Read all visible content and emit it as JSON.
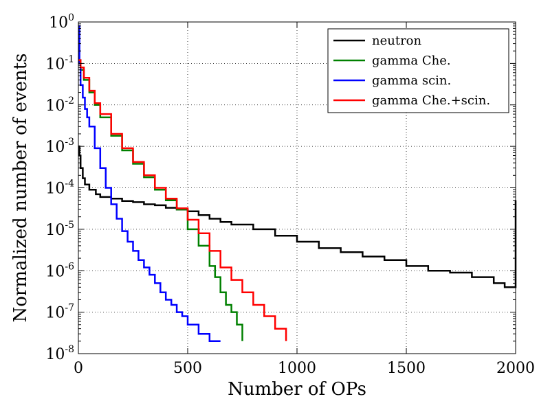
{
  "chart_data": {
    "type": "line",
    "xlabel": "Number of OPs",
    "ylabel": "Normalized number of events",
    "xlim": [
      0,
      2000
    ],
    "ylim": [
      1e-08,
      1
    ],
    "yscale": "log",
    "grid": true,
    "legend_position": "top-right",
    "x_ticks": [
      {
        "value": 0,
        "label": "0"
      },
      {
        "value": 500,
        "label": "500"
      },
      {
        "value": 1000,
        "label": "1000"
      },
      {
        "value": 1500,
        "label": "1500"
      },
      {
        "value": 2000,
        "label": "2000"
      }
    ],
    "y_ticks": [
      {
        "value": 1,
        "base": "10",
        "exp": "0"
      },
      {
        "value": 0.1,
        "base": "10",
        "exp": "-1"
      },
      {
        "value": 0.01,
        "base": "10",
        "exp": "-2"
      },
      {
        "value": 0.001,
        "base": "10",
        "exp": "-3"
      },
      {
        "value": 0.0001,
        "base": "10",
        "exp": "-4"
      },
      {
        "value": 1e-05,
        "base": "10",
        "exp": "-5"
      },
      {
        "value": 1e-06,
        "base": "10",
        "exp": "-6"
      },
      {
        "value": 1e-07,
        "base": "10",
        "exp": "-7"
      },
      {
        "value": 1e-08,
        "base": "10",
        "exp": "-8"
      }
    ],
    "series": [
      {
        "name": "neutron",
        "color": "#000000",
        "x": [
          0,
          5,
          10,
          20,
          30,
          50,
          80,
          100,
          150,
          200,
          250,
          300,
          350,
          400,
          450,
          500,
          550,
          600,
          650,
          700,
          800,
          900,
          1000,
          1100,
          1200,
          1300,
          1400,
          1500,
          1600,
          1700,
          1800,
          1900,
          1950,
          2000
        ],
        "y": [
          0.001,
          0.0006,
          0.0003,
          0.00017,
          0.00012,
          9e-05,
          7e-05,
          6e-05,
          5.5e-05,
          4.8e-05,
          4.5e-05,
          4e-05,
          3.8e-05,
          3.3e-05,
          3e-05,
          2.7e-05,
          2.2e-05,
          1.8e-05,
          1.5e-05,
          1.3e-05,
          1e-05,
          7e-06,
          5e-06,
          3.5e-06,
          2.8e-06,
          2.2e-06,
          1.8e-06,
          1.3e-06,
          1e-06,
          9e-07,
          7e-07,
          5e-07,
          4e-07,
          5e-05
        ]
      },
      {
        "name": "gamma Che.",
        "color": "#008000",
        "x": [
          0,
          10,
          25,
          50,
          75,
          100,
          150,
          200,
          250,
          300,
          350,
          400,
          450,
          500,
          550,
          600,
          625,
          650,
          675,
          700,
          725,
          750
        ],
        "y": [
          0.12,
          0.07,
          0.04,
          0.02,
          0.01,
          0.005,
          0.0018,
          0.0008,
          0.00038,
          0.00018,
          9e-05,
          5e-05,
          3e-05,
          1e-05,
          4e-06,
          1.3e-06,
          7e-07,
          3e-07,
          1.5e-07,
          1e-07,
          5e-08,
          2e-08
        ]
      },
      {
        "name": "gamma scin.",
        "color": "#0000ff",
        "x": [
          0,
          5,
          10,
          20,
          30,
          40,
          50,
          75,
          100,
          125,
          150,
          175,
          200,
          225,
          250,
          275,
          300,
          325,
          350,
          375,
          400,
          425,
          450,
          475,
          500,
          550,
          600,
          650
        ],
        "y": [
          0.8,
          0.1,
          0.03,
          0.015,
          0.008,
          0.005,
          0.003,
          0.0009,
          0.0003,
          0.0001,
          4e-05,
          1.8e-05,
          9e-06,
          5e-06,
          3e-06,
          1.8e-06,
          1.2e-06,
          8e-07,
          5e-07,
          3e-07,
          2e-07,
          1.5e-07,
          1e-07,
          8e-08,
          5e-08,
          3e-08,
          2e-08,
          2e-08
        ]
      },
      {
        "name": "gamma Che.+scin.",
        "color": "#ff0000",
        "x": [
          0,
          10,
          25,
          50,
          75,
          100,
          150,
          200,
          250,
          300,
          350,
          400,
          450,
          500,
          550,
          600,
          650,
          700,
          750,
          800,
          850,
          900,
          950
        ],
        "y": [
          0.12,
          0.08,
          0.045,
          0.022,
          0.011,
          0.006,
          0.002,
          0.0009,
          0.00042,
          0.0002,
          0.0001,
          5.5e-05,
          3.2e-05,
          1.7e-05,
          8e-06,
          3e-06,
          1.2e-06,
          6e-07,
          3e-07,
          1.5e-07,
          8e-08,
          4e-08,
          2e-08
        ]
      }
    ]
  }
}
